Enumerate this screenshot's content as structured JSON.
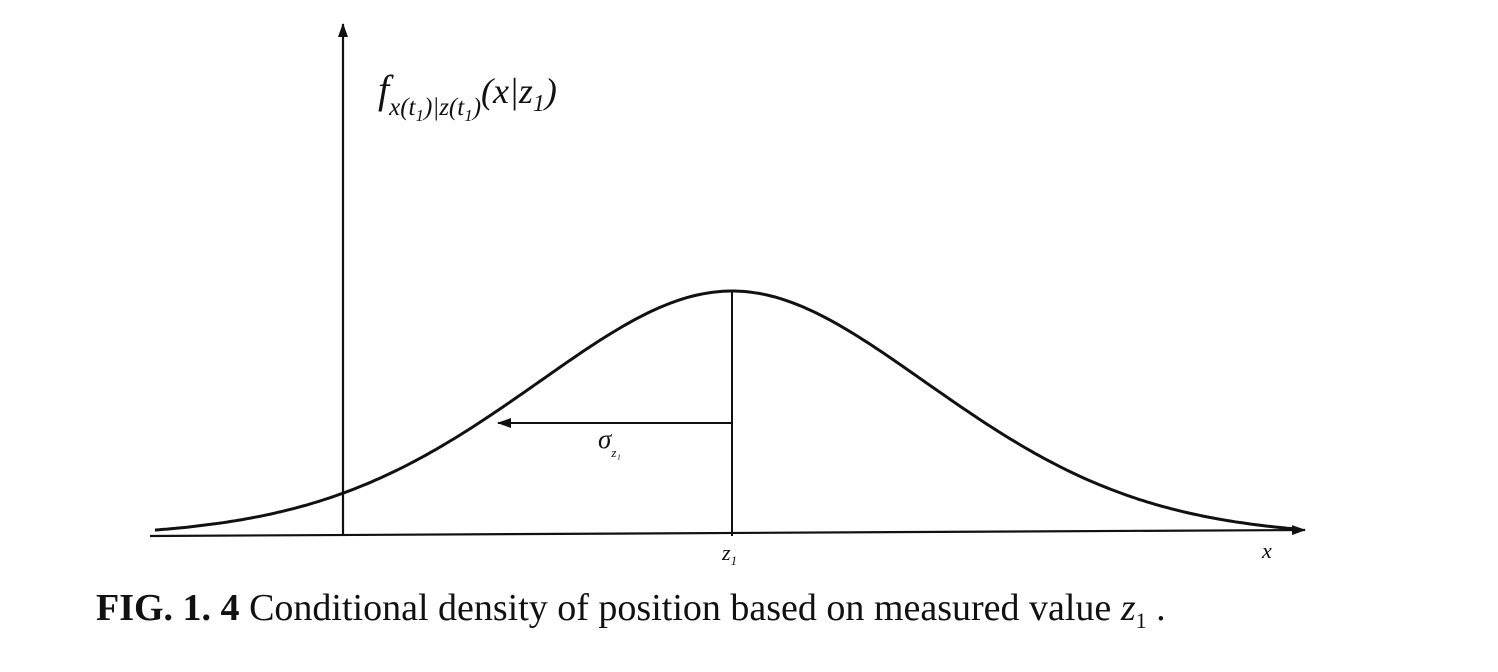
{
  "figure": {
    "y_label": {
      "f": "f",
      "sub_main": "x(t",
      "sub_idx1": "1",
      "sub_mid": ")|z(t",
      "sub_idx2": "1",
      "sub_end": ")",
      "arg_open": "(x|z",
      "arg_idx": "1",
      "arg_close": ")"
    },
    "sigma_label": {
      "symbol": "σ",
      "sub": "z₁"
    },
    "mean_tick": {
      "symbol": "z",
      "sub": "1"
    },
    "x_axis_label": "x"
  },
  "caption": {
    "label": "FIG. 1. 4",
    "text": " Conditional density of position based on measured value ",
    "var": "z",
    "var_sub": "1",
    "end": " ."
  },
  "chart_data": {
    "type": "line",
    "curve": "gaussian",
    "mean_label": "z₁",
    "std_label": "σ_z₁",
    "xlabel": "x",
    "ylabel": "f_x(t₁)|z(t₁)(x|z₁)"
  }
}
